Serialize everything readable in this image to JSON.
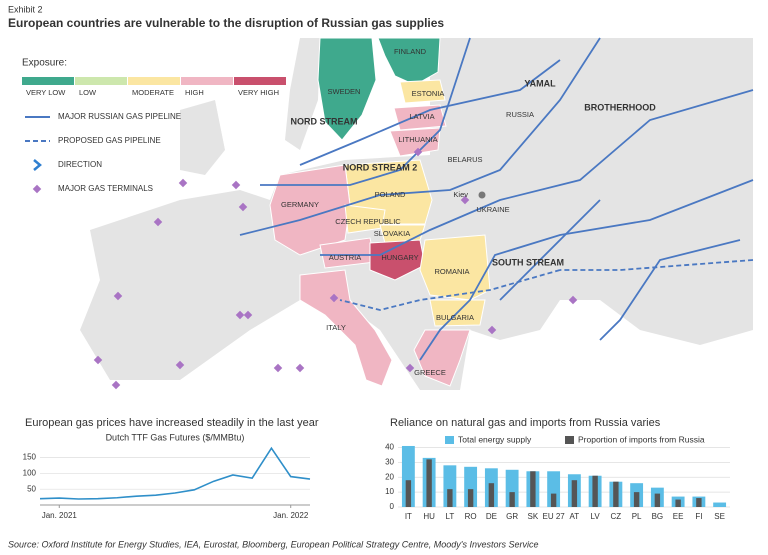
{
  "header": {
    "exhibit": "Exhibit 2",
    "title": "European countries are vulnerable to the disruption of Russian gas supplies"
  },
  "map": {
    "legend_title": "Exposure:",
    "exposure_levels": [
      {
        "label": "VERY LOW",
        "color": "#3fa98d"
      },
      {
        "label": "LOW",
        "color": "#cde7ad"
      },
      {
        "label": "MODERATE",
        "color": "#fbe6a2"
      },
      {
        "label": "HIGH",
        "color": "#f0b6c3"
      },
      {
        "label": "VERY HIGH",
        "color": "#c9506d"
      }
    ],
    "legend_items": [
      "MAJOR RUSSIAN GAS PIPELINE",
      "PROPOSED GAS PIPELINE",
      "DIRECTION",
      "MAJOR GAS TERMINALS"
    ],
    "countries": [
      {
        "label": "FINLAND",
        "exposure": "VERY LOW"
      },
      {
        "label": "SWEDEN",
        "exposure": "VERY LOW"
      },
      {
        "label": "ESTONIA",
        "exposure": "MODERATE"
      },
      {
        "label": "LATVIA",
        "exposure": "HIGH"
      },
      {
        "label": "LITHUANIA",
        "exposure": "HIGH"
      },
      {
        "label": "POLAND",
        "exposure": "MODERATE"
      },
      {
        "label": "GERMANY",
        "exposure": "HIGH"
      },
      {
        "label": "CZECH REPUBLIC",
        "exposure": "MODERATE"
      },
      {
        "label": "SLOVAKIA",
        "exposure": "MODERATE"
      },
      {
        "label": "AUSTRIA",
        "exposure": "HIGH"
      },
      {
        "label": "HUNGARY",
        "exposure": "VERY HIGH"
      },
      {
        "label": "ROMANIA",
        "exposure": "MODERATE"
      },
      {
        "label": "BULGARIA",
        "exposure": "MODERATE"
      },
      {
        "label": "ITALY",
        "exposure": "HIGH"
      },
      {
        "label": "GREECE",
        "exposure": "HIGH"
      }
    ],
    "places": [
      "RUSSIA",
      "BELARUS",
      "UKRAINE",
      "Kiev"
    ],
    "pipelines": [
      "YAMAL",
      "BROTHERHOOD",
      "NORD STREAM",
      "NORD STREAM 2",
      "SOUTH STREAM"
    ]
  },
  "chart_data": [
    {
      "type": "line",
      "title": "European gas prices have increased steadily in the last year",
      "subtitle": "Dutch TTF Gas Futures ($/MMBtu)",
      "x": [
        "2020-12",
        "2021-01",
        "2021-02",
        "2021-03",
        "2021-04",
        "2021-05",
        "2021-06",
        "2021-07",
        "2021-08",
        "2021-09",
        "2021-10",
        "2021-11",
        "2021-12",
        "2022-01",
        "2022-02"
      ],
      "values": [
        20,
        22,
        19,
        20,
        23,
        28,
        31,
        38,
        48,
        75,
        95,
        85,
        180,
        90,
        82
      ],
      "color": "#2f8fc9",
      "xlim": [
        "2020-12",
        "2022-02"
      ],
      "xticks": [
        {
          "value": "2021-01",
          "label": "Jan. 2021"
        },
        {
          "value": "2022-01",
          "label": "Jan. 2022"
        }
      ],
      "ylim": [
        0,
        190
      ],
      "yticks": [
        50,
        100,
        150
      ],
      "grid": true
    },
    {
      "type": "bar",
      "title": "Reliance on natural gas and imports from Russia varies",
      "categories": [
        "IT",
        "HU",
        "LT",
        "RO",
        "DE",
        "GR",
        "SK",
        "EU 27",
        "AT",
        "LV",
        "CZ",
        "PL",
        "BG",
        "EE",
        "FI",
        "SE"
      ],
      "series": [
        {
          "name": "Total energy supply",
          "color": "#5bbde6",
          "values": [
            41,
            33,
            28,
            27,
            26,
            25,
            24,
            24,
            22,
            21,
            17,
            16,
            13,
            7,
            7,
            3
          ]
        },
        {
          "name": "Proportion of imports from Russia",
          "color": "#555555",
          "values": [
            18,
            32,
            12,
            12,
            16,
            10,
            24,
            9,
            18,
            21,
            17,
            10,
            9,
            5,
            6,
            0
          ]
        }
      ],
      "ylim": [
        0,
        43
      ],
      "yticks": [
        0,
        10,
        20,
        30,
        40
      ],
      "grid": true
    }
  ],
  "source": "Source: Oxford Institute for Energy Studies, IEA, Eurostat, Bloomberg, European Political Strategy Centre, Moody's Investors Service"
}
